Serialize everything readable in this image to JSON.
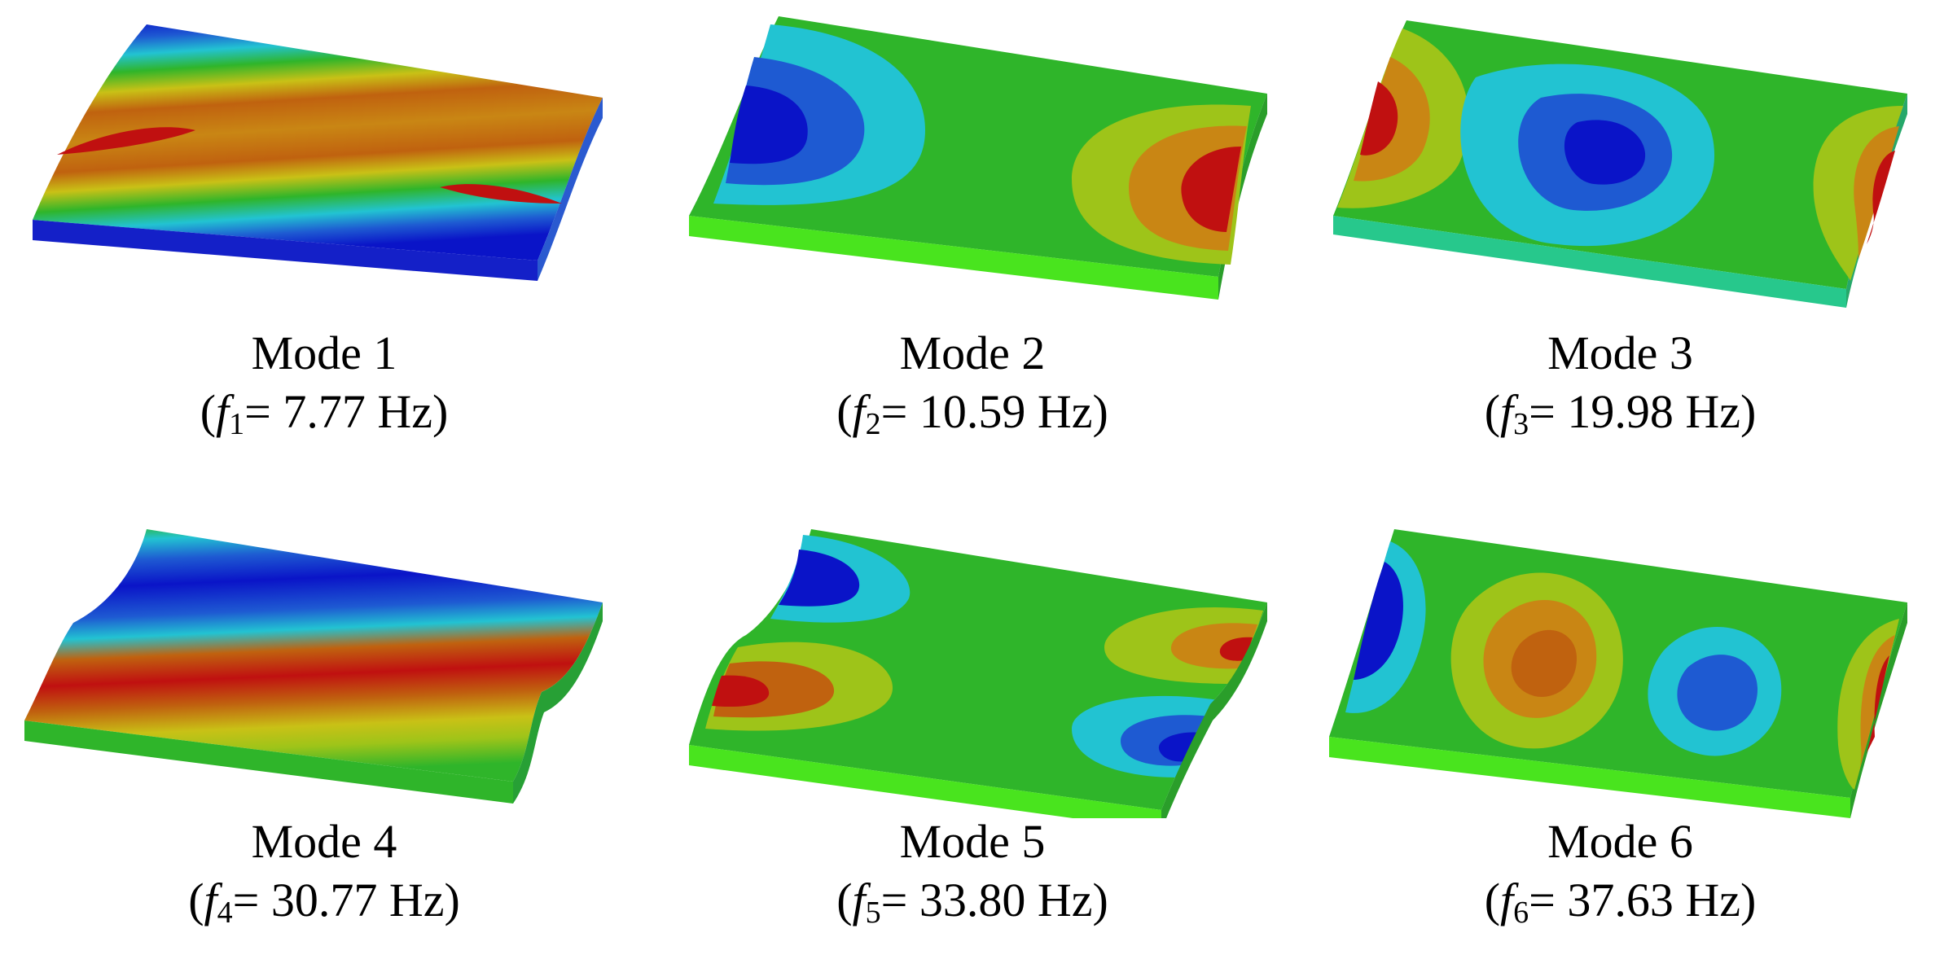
{
  "modes": [
    {
      "title": "Mode 1",
      "symbol": "f",
      "index": "1",
      "value_text": "= 7.77 Hz)",
      "frequency_hz": 7.77
    },
    {
      "title": "Mode 2",
      "symbol": "f",
      "index": "2",
      "value_text": "= 10.59 Hz)",
      "frequency_hz": 10.59
    },
    {
      "title": "Mode 3",
      "symbol": "f",
      "index": "3",
      "value_text": "= 19.98 Hz)",
      "frequency_hz": 19.98
    },
    {
      "title": "Mode 4",
      "symbol": "f",
      "index": "4",
      "value_text": "= 30.77 Hz)",
      "frequency_hz": 30.77
    },
    {
      "title": "Mode 5",
      "symbol": "f",
      "index": "5",
      "value_text": "= 33.80 Hz)",
      "frequency_hz": 33.8
    },
    {
      "title": "Mode 6",
      "symbol": "f",
      "index": "6",
      "value_text": "= 37.63 Hz)",
      "frequency_hz": 37.63
    }
  ],
  "colors": {
    "deep_blue": "#0a14c8",
    "blue": "#1e5ad2",
    "cyan": "#22c3d2",
    "aqua_green": "#27c88c",
    "green": "#2fb52a",
    "lime": "#49e41e",
    "yellow_green": "#9ec419",
    "yellow": "#c9c116",
    "orange": "#c98614",
    "dark_orange": "#c0620f",
    "red": "#c01010",
    "edge_light": "#33ee33"
  }
}
